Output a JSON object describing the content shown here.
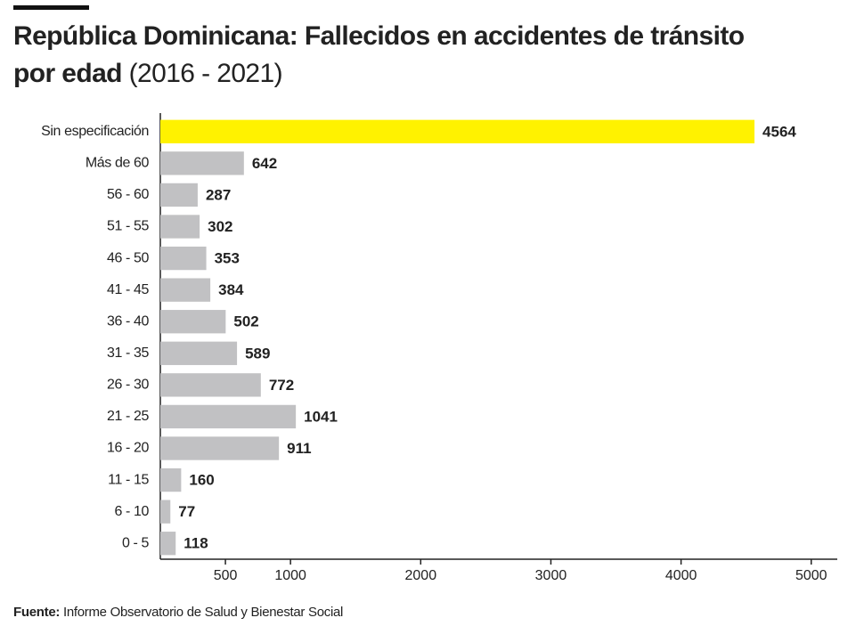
{
  "chart_data": {
    "type": "hbar",
    "title": "República Dominicana: Fallecidos en accidentes de tránsito por edad",
    "subtitle": "(2016 - 2021)",
    "categories": [
      "Sin especificación",
      "Más de 60",
      "56 - 60",
      "51 - 55",
      "46 - 50",
      "41 - 45",
      "36 - 40",
      "31 - 35",
      "26 - 30",
      "21 - 25",
      "16 - 20",
      "11 - 15",
      "6 - 10",
      "0 - 5"
    ],
    "values": [
      4564,
      642,
      287,
      302,
      353,
      384,
      502,
      589,
      772,
      1041,
      911,
      160,
      77,
      118
    ],
    "colors": [
      "#fff200",
      "#c1c1c3",
      "#c1c1c3",
      "#c1c1c3",
      "#c1c1c3",
      "#c1c1c3",
      "#c1c1c3",
      "#c1c1c3",
      "#c1c1c3",
      "#c1c1c3",
      "#c1c1c3",
      "#c1c1c3",
      "#c1c1c3",
      "#c1c1c3"
    ],
    "xlim": [
      0,
      5200
    ],
    "xticks": [
      500,
      1000,
      2000,
      3000,
      4000,
      5000
    ],
    "source_label": "Fuente:",
    "source": "Informe Observatorio de Salud y Bienestar Social"
  }
}
